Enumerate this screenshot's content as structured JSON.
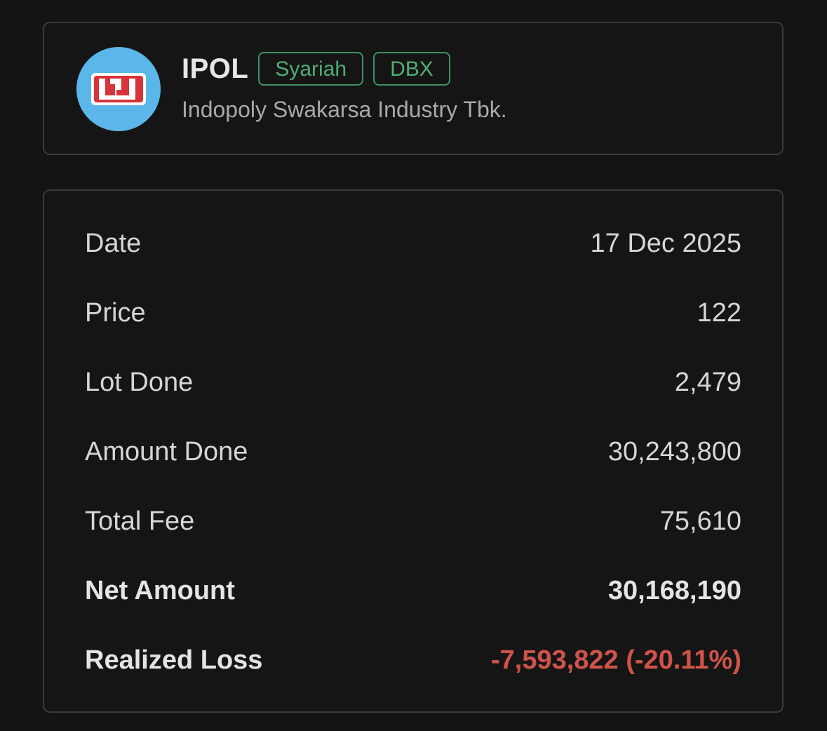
{
  "stock": {
    "ticker": "IPOL",
    "badges": [
      "Syariah",
      "DBX"
    ],
    "company_name": "Indopoly Swakarsa Industry Tbk.",
    "logo_icon": "ipol-logo-icon",
    "logo_bg_color": "#5bb7ea",
    "logo_mark_color": "#d8323a"
  },
  "details": [
    {
      "label": "Date",
      "value": "17 Dec 2025"
    },
    {
      "label": "Price",
      "value": "122"
    },
    {
      "label": "Lot Done",
      "value": "2,479"
    },
    {
      "label": "Amount Done",
      "value": "30,243,800"
    },
    {
      "label": "Total Fee",
      "value": "75,610"
    },
    {
      "label": "Net Amount",
      "value": "30,168,190"
    },
    {
      "label": "Realized Loss",
      "value": "-7,593,822 (-20.11%)"
    }
  ],
  "colors": {
    "badge_green": "#4fae75",
    "loss_red": "#d0534a"
  }
}
